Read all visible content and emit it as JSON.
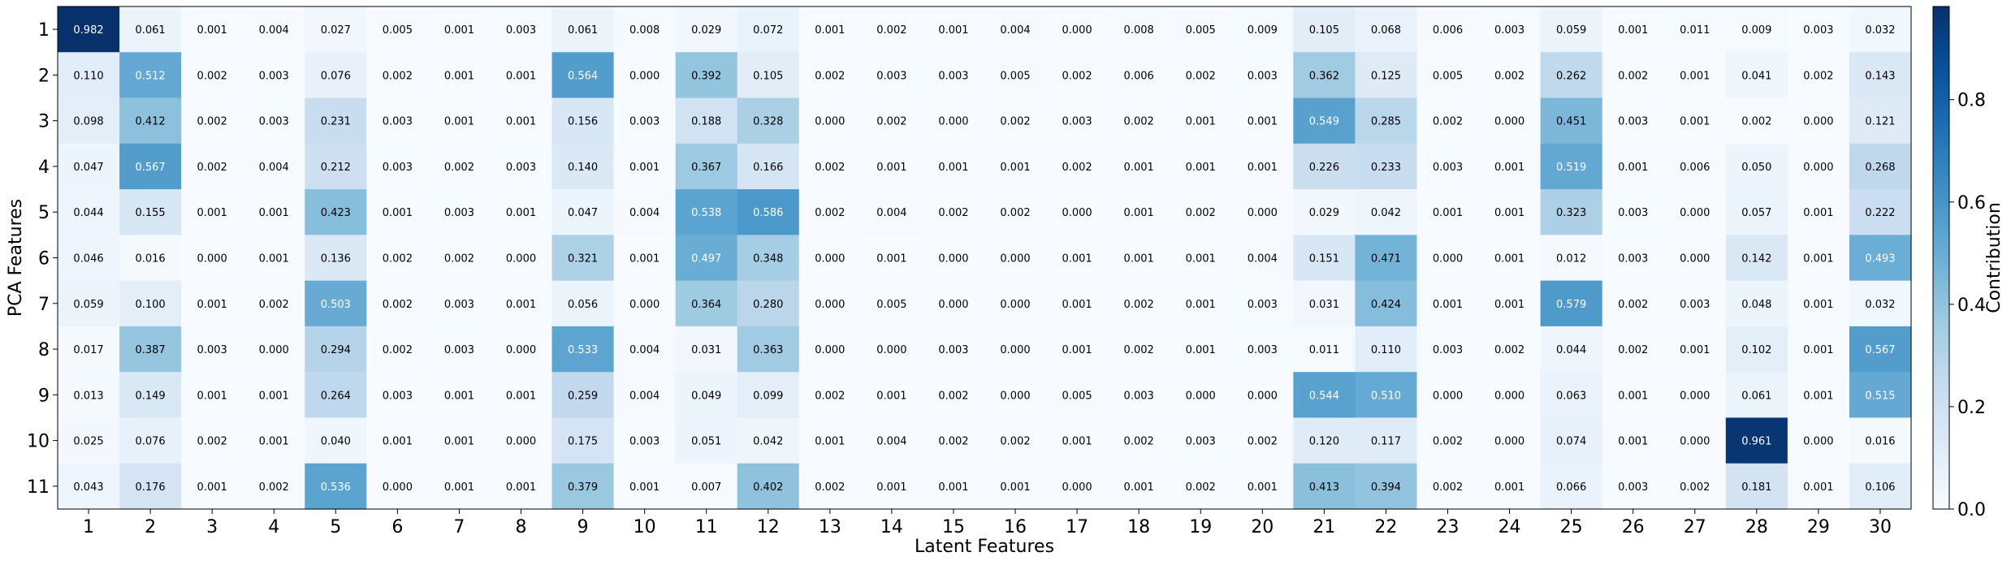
{
  "chart_data": {
    "type": "heatmap",
    "title": "",
    "xlabel": "Latent Features",
    "ylabel": "PCA Features",
    "colorbar_label": "Contribution",
    "colormap": "Blues",
    "vmin": 0.0,
    "vmax": 0.982,
    "colorbar_ticks": [
      0.0,
      0.2,
      0.4,
      0.6,
      0.8
    ],
    "colorbar_tick_labels": [
      "0.0",
      "0.2",
      "0.4",
      "0.6",
      "0.8"
    ],
    "x_tick_labels": [
      "1",
      "2",
      "3",
      "4",
      "5",
      "6",
      "7",
      "8",
      "9",
      "10",
      "11",
      "12",
      "13",
      "14",
      "15",
      "16",
      "17",
      "18",
      "19",
      "20",
      "21",
      "22",
      "23",
      "24",
      "25",
      "26",
      "27",
      "28",
      "29",
      "30"
    ],
    "y_tick_labels": [
      "1",
      "2",
      "3",
      "4",
      "5",
      "6",
      "7",
      "8",
      "9",
      "10",
      "11"
    ],
    "values": [
      [
        "0.982",
        "0.061",
        "0.001",
        "0.004",
        "0.027",
        "0.005",
        "0.001",
        "0.003",
        "0.061",
        "0.008",
        "0.029",
        "0.072",
        "0.001",
        "0.002",
        "0.001",
        "0.004",
        "0.000",
        "0.008",
        "0.005",
        "0.009",
        "0.105",
        "0.068",
        "0.006",
        "0.003",
        "0.059",
        "0.001",
        "0.011",
        "0.009",
        "0.003",
        "0.032"
      ],
      [
        "0.110",
        "0.512",
        "0.002",
        "0.003",
        "0.076",
        "0.002",
        "0.001",
        "0.001",
        "0.564",
        "0.000",
        "0.392",
        "0.105",
        "0.002",
        "0.003",
        "0.003",
        "0.005",
        "0.002",
        "0.006",
        "0.002",
        "0.003",
        "0.362",
        "0.125",
        "0.005",
        "0.002",
        "0.262",
        "0.002",
        "0.001",
        "0.041",
        "0.002",
        "0.143"
      ],
      [
        "0.098",
        "0.412",
        "0.002",
        "0.003",
        "0.231",
        "0.003",
        "0.001",
        "0.001",
        "0.156",
        "0.003",
        "0.188",
        "0.328",
        "0.000",
        "0.002",
        "0.000",
        "0.002",
        "0.003",
        "0.002",
        "0.001",
        "0.001",
        "0.549",
        "0.285",
        "0.002",
        "0.000",
        "0.451",
        "0.003",
        "0.001",
        "0.002",
        "0.000",
        "0.121"
      ],
      [
        "0.047",
        "0.567",
        "0.002",
        "0.004",
        "0.212",
        "0.003",
        "0.002",
        "0.003",
        "0.140",
        "0.001",
        "0.367",
        "0.166",
        "0.002",
        "0.001",
        "0.001",
        "0.001",
        "0.002",
        "0.001",
        "0.001",
        "0.001",
        "0.226",
        "0.233",
        "0.003",
        "0.001",
        "0.519",
        "0.001",
        "0.006",
        "0.050",
        "0.000",
        "0.268"
      ],
      [
        "0.044",
        "0.155",
        "0.001",
        "0.001",
        "0.423",
        "0.001",
        "0.003",
        "0.001",
        "0.047",
        "0.004",
        "0.538",
        "0.586",
        "0.002",
        "0.004",
        "0.002",
        "0.002",
        "0.000",
        "0.001",
        "0.002",
        "0.000",
        "0.029",
        "0.042",
        "0.001",
        "0.001",
        "0.323",
        "0.003",
        "0.000",
        "0.057",
        "0.001",
        "0.222"
      ],
      [
        "0.046",
        "0.016",
        "0.000",
        "0.001",
        "0.136",
        "0.002",
        "0.002",
        "0.000",
        "0.321",
        "0.001",
        "0.497",
        "0.348",
        "0.000",
        "0.001",
        "0.000",
        "0.000",
        "0.001",
        "0.001",
        "0.001",
        "0.004",
        "0.151",
        "0.471",
        "0.000",
        "0.001",
        "0.012",
        "0.003",
        "0.000",
        "0.142",
        "0.001",
        "0.493"
      ],
      [
        "0.059",
        "0.100",
        "0.001",
        "0.002",
        "0.503",
        "0.002",
        "0.003",
        "0.001",
        "0.056",
        "0.000",
        "0.364",
        "0.280",
        "0.000",
        "0.005",
        "0.000",
        "0.000",
        "0.001",
        "0.002",
        "0.001",
        "0.003",
        "0.031",
        "0.424",
        "0.001",
        "0.001",
        "0.579",
        "0.002",
        "0.003",
        "0.048",
        "0.001",
        "0.032"
      ],
      [
        "0.017",
        "0.387",
        "0.003",
        "0.000",
        "0.294",
        "0.002",
        "0.003",
        "0.000",
        "0.533",
        "0.004",
        "0.031",
        "0.363",
        "0.000",
        "0.000",
        "0.003",
        "0.000",
        "0.001",
        "0.002",
        "0.001",
        "0.003",
        "0.011",
        "0.110",
        "0.003",
        "0.002",
        "0.044",
        "0.002",
        "0.001",
        "0.102",
        "0.001",
        "0.567"
      ],
      [
        "0.013",
        "0.149",
        "0.001",
        "0.001",
        "0.264",
        "0.003",
        "0.001",
        "0.001",
        "0.259",
        "0.004",
        "0.049",
        "0.099",
        "0.002",
        "0.001",
        "0.002",
        "0.000",
        "0.005",
        "0.003",
        "0.000",
        "0.000",
        "0.544",
        "0.510",
        "0.000",
        "0.000",
        "0.063",
        "0.001",
        "0.000",
        "0.061",
        "0.001",
        "0.515"
      ],
      [
        "0.025",
        "0.076",
        "0.002",
        "0.001",
        "0.040",
        "0.001",
        "0.001",
        "0.000",
        "0.175",
        "0.003",
        "0.051",
        "0.042",
        "0.001",
        "0.004",
        "0.002",
        "0.002",
        "0.001",
        "0.002",
        "0.003",
        "0.002",
        "0.120",
        "0.117",
        "0.002",
        "0.000",
        "0.074",
        "0.001",
        "0.000",
        "0.961",
        "0.000",
        "0.016"
      ],
      [
        "0.043",
        "0.176",
        "0.001",
        "0.002",
        "0.536",
        "0.000",
        "0.001",
        "0.001",
        "0.379",
        "0.001",
        "0.007",
        "0.402",
        "0.002",
        "0.001",
        "0.001",
        "0.001",
        "0.000",
        "0.001",
        "0.002",
        "0.001",
        "0.413",
        "0.394",
        "0.002",
        "0.001",
        "0.066",
        "0.003",
        "0.002",
        "0.181",
        "0.001",
        "0.106"
      ]
    ]
  }
}
